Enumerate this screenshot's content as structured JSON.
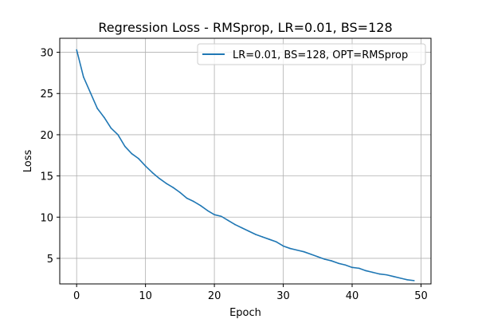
{
  "chart_data": {
    "type": "line",
    "title": "Regression Loss - RMSprop, LR=0.01, BS=128",
    "xlabel": "Epoch",
    "ylabel": "Loss",
    "xlim": [
      -2.45,
      51.45
    ],
    "ylim": [
      1.9,
      31.7
    ],
    "xticks": [
      0,
      10,
      20,
      30,
      40,
      50
    ],
    "yticks": [
      5,
      10,
      15,
      20,
      25,
      30
    ],
    "grid": true,
    "legend_position": "top-right",
    "series": [
      {
        "name": "LR=0.01, BS=128, OPT=RMSprop",
        "color": "#1f77b4",
        "x": [
          0,
          1,
          2,
          3,
          4,
          5,
          6,
          7,
          8,
          9,
          10,
          11,
          12,
          13,
          14,
          15,
          16,
          17,
          18,
          19,
          20,
          21,
          22,
          23,
          24,
          25,
          26,
          27,
          28,
          29,
          30,
          31,
          32,
          33,
          34,
          35,
          36,
          37,
          38,
          39,
          40,
          41,
          42,
          43,
          44,
          45,
          46,
          47,
          48,
          49
        ],
        "y": [
          30.3,
          27.0,
          25.1,
          23.2,
          22.1,
          20.8,
          20.0,
          18.6,
          17.7,
          17.1,
          16.2,
          15.4,
          14.7,
          14.1,
          13.6,
          13.0,
          12.3,
          11.9,
          11.4,
          10.8,
          10.3,
          10.1,
          9.6,
          9.1,
          8.7,
          8.3,
          7.9,
          7.6,
          7.3,
          7.0,
          6.5,
          6.2,
          6.0,
          5.8,
          5.5,
          5.2,
          4.9,
          4.7,
          4.4,
          4.2,
          3.9,
          3.8,
          3.5,
          3.3,
          3.1,
          3.0,
          2.8,
          2.6,
          2.4,
          2.3
        ]
      }
    ]
  }
}
